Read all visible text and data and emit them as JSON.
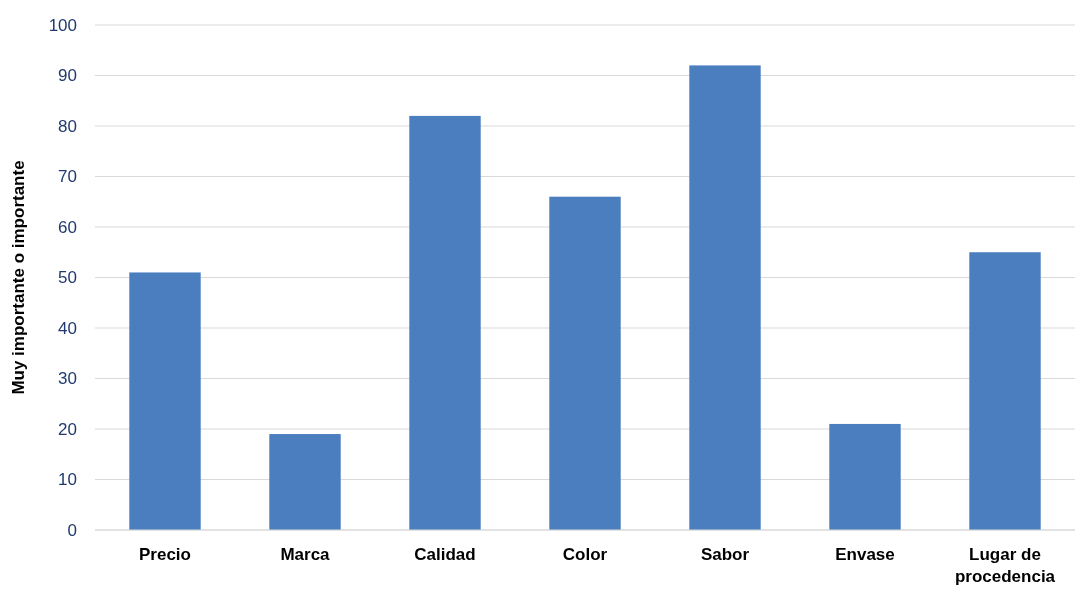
{
  "chart_data": {
    "type": "bar",
    "ylabel": "Muy importante o importante",
    "categories": [
      "Precio",
      "Marca",
      "Calidad",
      "Color",
      "Sabor",
      "Envase",
      "Lugar de procedencia"
    ],
    "values": [
      51,
      19,
      82,
      66,
      92,
      21,
      55
    ],
    "color": "#4a7ebf",
    "ylim": [
      0,
      100
    ],
    "yticks": [
      0,
      10,
      20,
      30,
      40,
      50,
      60,
      70,
      80,
      90,
      100
    ],
    "grid": "y"
  }
}
